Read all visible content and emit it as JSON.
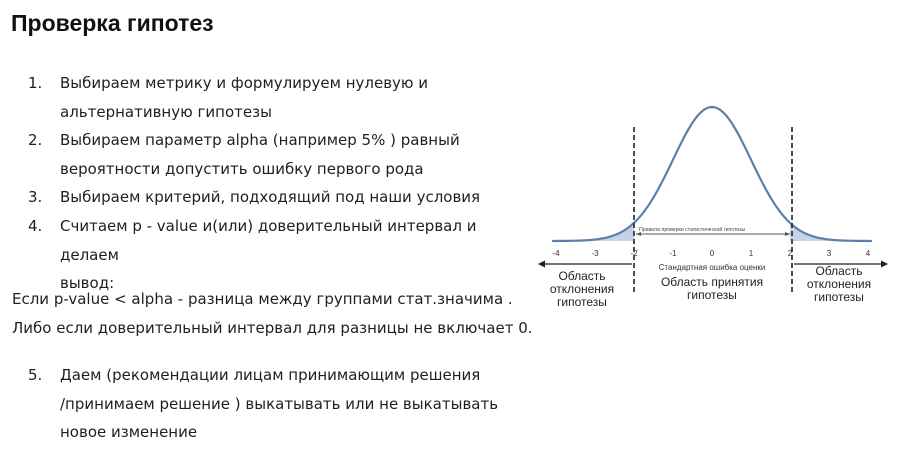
{
  "title": "Проверка гипотез",
  "steps": [
    {
      "num": "1.",
      "lines": [
        "Выбираем метрику и формулируем нулевую и",
        "альтернативную гипотезы"
      ]
    },
    {
      "num": "2.",
      "lines": [
        "Выбираем параметр alpha (например 5% ) равный",
        "вероятности допустить ошибку первого рода"
      ]
    },
    {
      "num": "3.",
      "lines": [
        "Выбираем критерий, подходящий под наши условия"
      ]
    },
    {
      "num": "4.",
      "lines": [
        "Считаем p - value и(или) доверительный интервал и делаем",
        "вывод:"
      ]
    }
  ],
  "paragraphs": [
    "Если p-value < alpha - разница между группами стат.значима .",
    "Либо если доверительный интервал для разницы не включает 0."
  ],
  "step5": {
    "num": "5.",
    "lines": [
      "Даем (рекомендации лицам принимающим решения",
      "/принимаем решение ) выкатывать или не выкатывать",
      "новое изменение"
    ]
  },
  "figure": {
    "ticks": [
      "-4",
      "-3",
      "-2",
      "-1",
      "0",
      "1",
      "2",
      "3",
      "4"
    ],
    "arrow_label": "Правила проверки статистической гипотезы",
    "axis_label": "Стандартная ошибка оценки",
    "left_region": [
      "Область",
      "отклонения",
      "гипотезы"
    ],
    "center_region": [
      "Область принятия",
      "гипотезы"
    ],
    "right_region": [
      "Область",
      "отклонения",
      "гипотезы"
    ],
    "curve_color": "#5b7fa8",
    "tail_fill": "#c5d3e6"
  }
}
